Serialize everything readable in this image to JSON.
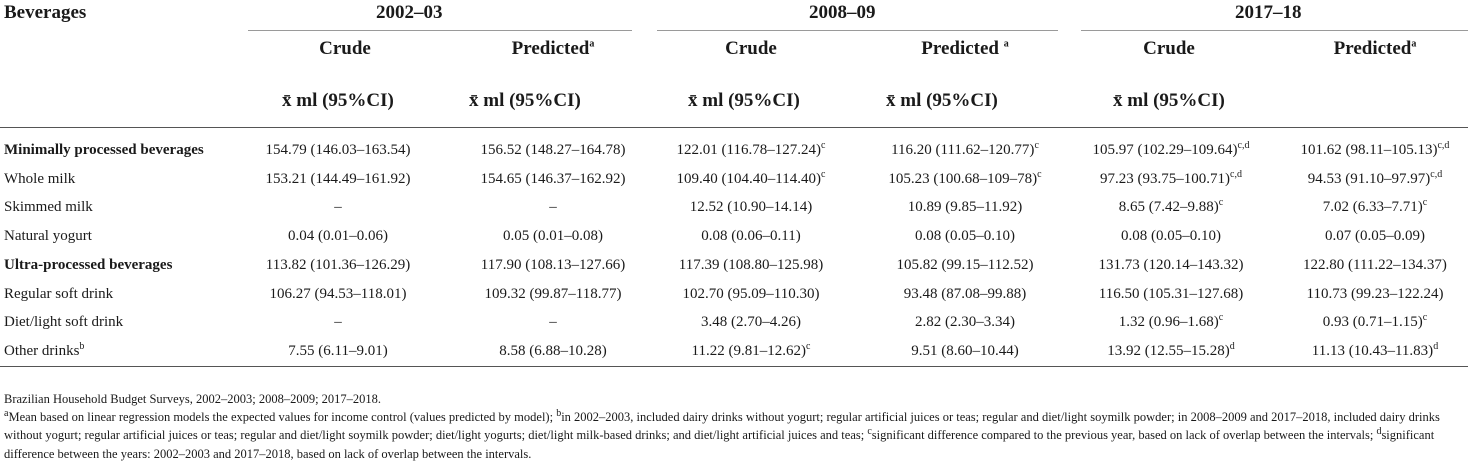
{
  "table": {
    "stub_header": "Beverages",
    "periods": [
      "2002–03",
      "2008–09",
      "2017–18"
    ],
    "subheaders": [
      {
        "label": "Crude",
        "sup": ""
      },
      {
        "label": "Predicted",
        "sup": "a"
      },
      {
        "label": "Crude",
        "sup": ""
      },
      {
        "label": "Predicted ",
        "sup": "a"
      },
      {
        "label": "Crude",
        "sup": ""
      },
      {
        "label": "Predicted",
        "sup": "a"
      }
    ],
    "unit_label": "x̄ ml (95%CI)",
    "rows": [
      {
        "label": "Minimally processed beverages",
        "label_sup": "",
        "bold": true,
        "cells": [
          [
            "154.79 (146.03–163.54)",
            ""
          ],
          [
            "156.52 (148.27–164.78)",
            ""
          ],
          [
            "122.01 (116.78–127.24)",
            "c"
          ],
          [
            "116.20 (111.62–120.77)",
            "c"
          ],
          [
            "105.97 (102.29–109.64)",
            "c,d"
          ],
          [
            "101.62 (98.11–105.13)",
            "c,d"
          ]
        ]
      },
      {
        "label": "Whole milk",
        "label_sup": "",
        "bold": false,
        "cells": [
          [
            "153.21 (144.49–161.92)",
            ""
          ],
          [
            "154.65 (146.37–162.92)",
            ""
          ],
          [
            "109.40 (104.40–114.40)",
            "c"
          ],
          [
            "105.23 (100.68–109–78)",
            "c"
          ],
          [
            "97.23 (93.75–100.71)",
            "c,d"
          ],
          [
            "94.53 (91.10–97.97)",
            "c,d"
          ]
        ]
      },
      {
        "label": "Skimmed milk",
        "label_sup": "",
        "bold": false,
        "cells": [
          [
            "–",
            ""
          ],
          [
            "–",
            ""
          ],
          [
            "12.52 (10.90–14.14)",
            ""
          ],
          [
            "10.89 (9.85–11.92)",
            ""
          ],
          [
            "8.65 (7.42–9.88)",
            "c"
          ],
          [
            "7.02 (6.33–7.71)",
            "c"
          ]
        ]
      },
      {
        "label": "Natural yogurt",
        "label_sup": "",
        "bold": false,
        "cells": [
          [
            "0.04 (0.01–0.06)",
            ""
          ],
          [
            "0.05 (0.01–0.08)",
            ""
          ],
          [
            "0.08 (0.06–0.11)",
            ""
          ],
          [
            "0.08 (0.05–0.10)",
            ""
          ],
          [
            "0.08 (0.05–0.10)",
            ""
          ],
          [
            "0.07 (0.05–0.09)",
            ""
          ]
        ]
      },
      {
        "label": "Ultra-processed beverages",
        "label_sup": "",
        "bold": true,
        "cells": [
          [
            "113.82 (101.36–126.29)",
            ""
          ],
          [
            "117.90 (108.13–127.66)",
            ""
          ],
          [
            "117.39 (108.80–125.98)",
            ""
          ],
          [
            "105.82 (99.15–112.52)",
            ""
          ],
          [
            "131.73 (120.14–143.32)",
            ""
          ],
          [
            "122.80 (111.22–134.37)",
            ""
          ]
        ]
      },
      {
        "label": "Regular soft drink",
        "label_sup": "",
        "bold": false,
        "cells": [
          [
            "106.27 (94.53–118.01)",
            ""
          ],
          [
            "109.32 (99.87–118.77)",
            ""
          ],
          [
            "102.70 (95.09–110.30)",
            ""
          ],
          [
            "93.48 (87.08–99.88)",
            ""
          ],
          [
            "116.50 (105.31–127.68)",
            ""
          ],
          [
            "110.73 (99.23–122.24)",
            ""
          ]
        ]
      },
      {
        "label": "Diet/light soft drink",
        "label_sup": "",
        "bold": false,
        "cells": [
          [
            "–",
            ""
          ],
          [
            "–",
            ""
          ],
          [
            "3.48 (2.70–4.26)",
            ""
          ],
          [
            "2.82 (2.30–3.34)",
            ""
          ],
          [
            "1.32 (0.96–1.68)",
            "c"
          ],
          [
            "0.93 (0.71–1.15)",
            "c"
          ]
        ]
      },
      {
        "label": "Other drinks",
        "label_sup": "b",
        "bold": false,
        "cells": [
          [
            "7.55 (6.11–9.01)",
            ""
          ],
          [
            "8.58 (6.88–10.28)",
            ""
          ],
          [
            "11.22 (9.81–12.62)",
            "c"
          ],
          [
            "9.51 (8.60–10.44)",
            ""
          ],
          [
            "13.92 (12.55–15.28)",
            "d"
          ],
          [
            "11.13 (10.43–11.83)",
            "d"
          ]
        ]
      }
    ]
  },
  "footnotes": {
    "source": "Brazilian Household Budget Surveys, 2002–2003; 2008–2009; 2017–2018.",
    "mark_a": "a",
    "text_a": "Mean based on linear regression models the expected values for income control (values predicted by model); ",
    "mark_b": "b",
    "text_b": "in 2002–2003, included dairy drinks without yogurt; regular artificial juices or teas; regular and diet/light soymilk powder; in 2008–2009 and 2017–2018, included dairy drinks without yogurt; regular artificial juices or teas; regular and diet/light soymilk powder; diet/light yogurts; diet/light milk-based drinks; and diet/light artificial juices and teas; ",
    "mark_c": "c",
    "text_c": "significant difference compared to the previous year, based on lack of overlap between the intervals; ",
    "mark_d": "d",
    "text_d": "significant difference between the years: 2002–2003 and 2017–2018, based on lack of overlap between the intervals."
  }
}
